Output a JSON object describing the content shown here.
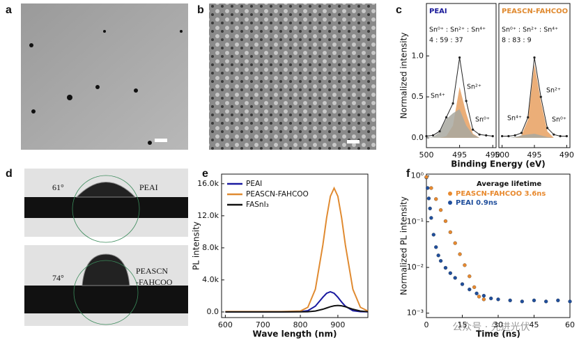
{
  "panel_labels": [
    "a",
    "b",
    "c",
    "d",
    "e",
    "f"
  ],
  "contact_angle": {
    "top": {
      "angle": "61°",
      "label": "PEAI"
    },
    "bottom": {
      "angle": "74°",
      "label_lines": [
        "PEASCN",
        "-FAHCOO"
      ]
    }
  },
  "watermark": "公众号 · 先进光伏",
  "chart_data": [
    {
      "type": "xps",
      "title": "PEAI",
      "title_color": "#1a1a9a",
      "ratio_header": "Sn⁰⁺ : Sn²⁺ : Sn⁴⁺",
      "ratio_values": "4 : 59 : 37",
      "annotations": [
        "Sn⁴⁺",
        "Sn²⁺",
        "Sn⁰⁺"
      ],
      "ylabel": "Normalized intensity",
      "xlabel": "Binding Energy (eV)",
      "x": [
        500,
        499,
        498,
        497,
        496,
        495,
        494,
        493,
        492,
        491,
        490
      ],
      "series": [
        {
          "color": "#e8a060",
          "fill": true,
          "values": [
            0,
            0,
            0,
            0.02,
            0.15,
            0.62,
            0.3,
            0.05,
            0,
            0,
            0
          ]
        },
        {
          "color": "#a8a8a0",
          "fill": true,
          "values": [
            0,
            0.01,
            0.07,
            0.23,
            0.3,
            0.35,
            0.15,
            0.04,
            0,
            0,
            0
          ]
        },
        {
          "color": "#222222",
          "fill": false,
          "values": [
            0.02,
            0.03,
            0.08,
            0.25,
            0.42,
            0.98,
            0.45,
            0.1,
            0.04,
            0.03,
            0.02
          ]
        }
      ],
      "xlim": [
        500,
        489.5
      ],
      "ylim": [
        -0.12,
        1.64
      ],
      "xticks": [
        500,
        495,
        490
      ],
      "yticks": [
        {
          "value": 0,
          "label": "0.0"
        },
        {
          "value": 0.5,
          "label": "0.5"
        },
        {
          "value": 1,
          "label": "1.0"
        }
      ]
    },
    {
      "type": "xps",
      "title": "PEASCN-FAHCOO",
      "title_color": "#e08a30",
      "ratio_header": "Sn⁰⁺ : Sn²⁺ : Sn⁴⁺",
      "ratio_values": "8 : 83 : 9",
      "annotations": [
        "Sn⁴⁺",
        "Sn²⁺",
        "Sn⁰⁺"
      ],
      "x": [
        500,
        499,
        498,
        497,
        496,
        495,
        494,
        493,
        492,
        491,
        490
      ],
      "series": [
        {
          "color": "#e8a060",
          "fill": true,
          "values": [
            0,
            0,
            0,
            0.03,
            0.22,
            0.9,
            0.45,
            0.08,
            0,
            0,
            0
          ]
        },
        {
          "color": "#a8a8a0",
          "fill": true,
          "values": [
            0,
            0,
            0.01,
            0.03,
            0.04,
            0.05,
            0.03,
            0.01,
            0,
            0,
            0
          ]
        },
        {
          "color": "#222222",
          "fill": false,
          "values": [
            0.02,
            0.02,
            0.03,
            0.06,
            0.25,
            0.98,
            0.5,
            0.12,
            0.04,
            0.02,
            0.02
          ]
        }
      ],
      "xlim": [
        500.5,
        489.5
      ],
      "ylim": [
        -0.12,
        1.64
      ],
      "xticks": [
        500,
        495,
        490
      ]
    },
    {
      "type": "line",
      "ylabel": "PL intensity",
      "xlabel": "Wave length (nm)",
      "x": [
        600,
        650,
        700,
        750,
        800,
        820,
        840,
        860,
        870,
        880,
        890,
        900,
        910,
        920,
        940,
        960,
        980
      ],
      "series": [
        {
          "name": "PEAI",
          "color": "#1a1aa0",
          "values": [
            20,
            20,
            20,
            20,
            35,
            160,
            720,
            1835,
            2330,
            2520,
            2330,
            1835,
            1240,
            720,
            160,
            35,
            20
          ]
        },
        {
          "name": "PEASCN-FAHCOO",
          "color": "#e08a30",
          "values": [
            50,
            50,
            50,
            50,
            110,
            585,
            2830,
            8360,
            11750,
            14430,
            15450,
            14430,
            11750,
            8360,
            2830,
            585,
            110
          ]
        },
        {
          "name": "FASnI₃",
          "color": "#111111",
          "values": [
            10,
            10,
            10,
            10,
            13,
            33,
            118,
            340,
            495,
            650,
            767,
            810,
            767,
            650,
            340,
            118,
            33
          ]
        }
      ],
      "xlim": [
        590,
        980
      ],
      "ylim": [
        -700,
        17200
      ],
      "xticks": [
        600,
        700,
        800,
        900
      ],
      "yticks": [
        {
          "value": 0,
          "label": "0.0"
        },
        {
          "value": 4000,
          "label": "4.0k"
        },
        {
          "value": 8000,
          "label": "8.0k"
        },
        {
          "value": 12000,
          "label": "12.0k"
        },
        {
          "value": 16000,
          "label": "16.0k"
        }
      ],
      "legend": "upper left"
    },
    {
      "type": "scatter",
      "ylabel": "Normalized PL intensity",
      "xlabel": "Time (ns)",
      "legend_title": "Average lifetime",
      "log_y": true,
      "series": [
        {
          "name": "PEAI  0.9ns",
          "color": "#1f4e9c",
          "x": [
            0,
            0.5,
            1,
            1.5,
            2,
            3,
            4,
            5,
            6,
            8,
            10,
            12,
            15,
            18,
            21,
            24,
            27,
            30,
            35,
            40,
            45,
            50,
            55,
            60
          ],
          "values": [
            0.93,
            0.546,
            0.323,
            0.195,
            0.121,
            0.052,
            0.0278,
            0.0183,
            0.0139,
            0.0098,
            0.0075,
            0.0059,
            0.0043,
            0.0033,
            0.0027,
            0.0024,
            0.0021,
            0.002,
            0.0019,
            0.0018,
            0.0019,
            0.0018,
            0.0019,
            0.0018
          ]
        },
        {
          "name": "PEASCN-FAHCOO   3.6ns",
          "color": "#e8892e",
          "x": [
            0,
            2,
            4,
            6,
            8,
            10,
            12,
            14,
            16,
            18,
            20,
            22,
            24
          ],
          "values": [
            0.95,
            0.545,
            0.313,
            0.18,
            0.103,
            0.059,
            0.034,
            0.0195,
            0.0112,
            0.0064,
            0.0037,
            0.0023,
            0.002
          ]
        }
      ],
      "xlim": [
        0,
        60
      ],
      "ylim": [
        0.0008,
        1.1
      ],
      "xticks": [
        0,
        15,
        30,
        45,
        60
      ],
      "yticks": [
        {
          "value": 1,
          "label": "10⁰"
        },
        {
          "value": 0.1,
          "label": "10⁻¹"
        },
        {
          "value": 0.01,
          "label": "10⁻²"
        },
        {
          "value": 0.001,
          "label": "10⁻³"
        }
      ]
    }
  ]
}
